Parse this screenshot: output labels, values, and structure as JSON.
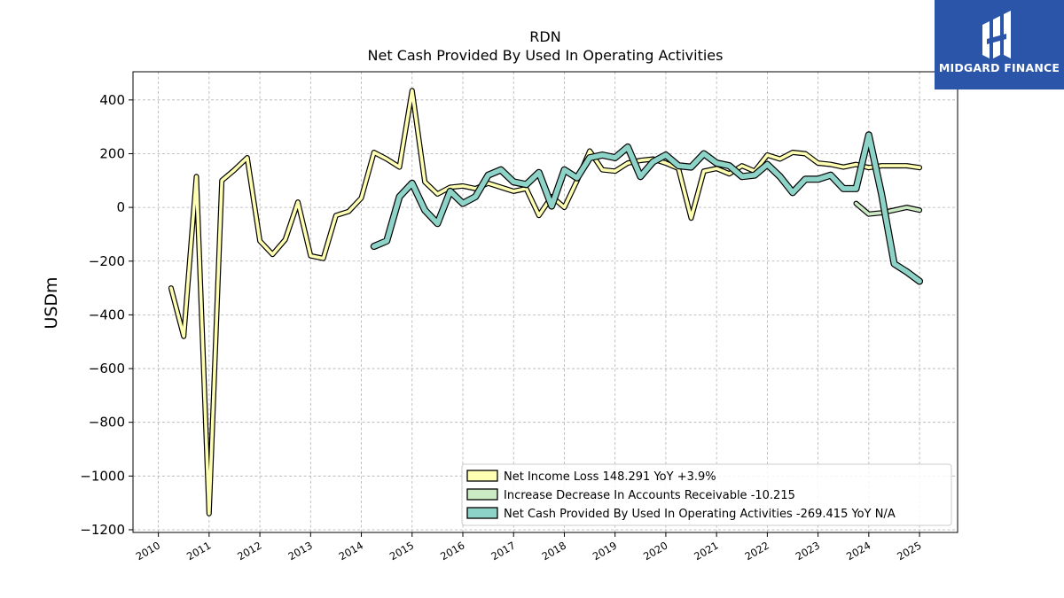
{
  "chart_data": {
    "type": "line",
    "title": "RDN",
    "subtitle": "Net Cash Provided By Used In Operating Activities",
    "ylabel": "USDm",
    "xlabel": "",
    "xlim": [
      2009.5,
      2025.75
    ],
    "ylim": [
      -1210,
      505
    ],
    "yticks": [
      -1200,
      -1000,
      -800,
      -600,
      -400,
      -200,
      0,
      200,
      400
    ],
    "ytick_labels": [
      "−1200",
      "−1000",
      "−800",
      "−600",
      "−400",
      "−200",
      "0",
      "200",
      "400"
    ],
    "xticks": [
      2010,
      2011,
      2012,
      2013,
      2014,
      2015,
      2016,
      2017,
      2018,
      2019,
      2020,
      2021,
      2022,
      2023,
      2024,
      2025
    ],
    "xtick_labels": [
      "2010",
      "2011",
      "2012",
      "2013",
      "2014",
      "2015",
      "2016",
      "2017",
      "2018",
      "2019",
      "2020",
      "2021",
      "2022",
      "2023",
      "2024",
      "2025"
    ],
    "grid": true,
    "legend_position": "lower-right",
    "series": [
      {
        "name": "Net Income Loss  148.291 YoY +3.9%",
        "color": "#ffffb3",
        "stroke_width": 3.6,
        "points": [
          [
            2010.25,
            -300
          ],
          [
            2010.5,
            -480
          ],
          [
            2010.75,
            115
          ],
          [
            2011.0,
            -1140
          ],
          [
            2011.25,
            100
          ],
          [
            2011.5,
            140
          ],
          [
            2011.75,
            185
          ],
          [
            2012.0,
            -125
          ],
          [
            2012.25,
            -175
          ],
          [
            2012.5,
            -120
          ],
          [
            2012.75,
            20
          ],
          [
            2013.0,
            -180
          ],
          [
            2013.25,
            -190
          ],
          [
            2013.5,
            -30
          ],
          [
            2013.75,
            -15
          ],
          [
            2014.0,
            35
          ],
          [
            2014.25,
            205
          ],
          [
            2014.5,
            180
          ],
          [
            2014.75,
            150
          ],
          [
            2015.0,
            435
          ],
          [
            2015.25,
            95
          ],
          [
            2015.5,
            50
          ],
          [
            2015.75,
            75
          ],
          [
            2016.0,
            80
          ],
          [
            2016.25,
            70
          ],
          [
            2016.5,
            90
          ],
          [
            2016.75,
            75
          ],
          [
            2017.0,
            60
          ],
          [
            2017.25,
            70
          ],
          [
            2017.5,
            -30
          ],
          [
            2017.75,
            40
          ],
          [
            2018.0,
            0
          ],
          [
            2018.25,
            100
          ],
          [
            2018.5,
            210
          ],
          [
            2018.75,
            140
          ],
          [
            2019.0,
            135
          ],
          [
            2019.25,
            165
          ],
          [
            2019.5,
            175
          ],
          [
            2019.75,
            180
          ],
          [
            2020.0,
            165
          ],
          [
            2020.25,
            145
          ],
          [
            2020.5,
            -40
          ],
          [
            2020.75,
            135
          ],
          [
            2021.0,
            145
          ],
          [
            2021.25,
            125
          ],
          [
            2021.5,
            155
          ],
          [
            2021.75,
            135
          ],
          [
            2022.0,
            195
          ],
          [
            2022.25,
            180
          ],
          [
            2022.5,
            205
          ],
          [
            2022.75,
            200
          ],
          [
            2023.0,
            165
          ],
          [
            2023.25,
            160
          ],
          [
            2023.5,
            150
          ],
          [
            2023.75,
            160
          ],
          [
            2024.0,
            148
          ],
          [
            2024.25,
            155
          ],
          [
            2024.5,
            155
          ],
          [
            2024.75,
            155
          ],
          [
            2025.0,
            148
          ]
        ]
      },
      {
        "name": "Increase Decrease In Accounts Receivable  -10.215",
        "color": "#ccebc5",
        "stroke_width": 3.6,
        "points": [
          [
            2023.75,
            15
          ],
          [
            2024.0,
            -25
          ],
          [
            2024.25,
            -20
          ],
          [
            2024.5,
            -10
          ],
          [
            2024.75,
            0
          ],
          [
            2025.0,
            -10
          ]
        ]
      },
      {
        "name": "Net Cash Provided By Used In Operating Activities  -269.415 YoY N/A",
        "color": "#8dd3c7",
        "stroke_width": 5.6,
        "points": [
          [
            2014.25,
            -145
          ],
          [
            2014.5,
            -125
          ],
          [
            2014.75,
            40
          ],
          [
            2015.0,
            90
          ],
          [
            2015.25,
            -10
          ],
          [
            2015.5,
            -60
          ],
          [
            2015.75,
            60
          ],
          [
            2016.0,
            15
          ],
          [
            2016.25,
            40
          ],
          [
            2016.5,
            120
          ],
          [
            2016.75,
            140
          ],
          [
            2017.0,
            95
          ],
          [
            2017.25,
            85
          ],
          [
            2017.5,
            130
          ],
          [
            2017.75,
            5
          ],
          [
            2018.0,
            140
          ],
          [
            2018.25,
            110
          ],
          [
            2018.5,
            185
          ],
          [
            2018.75,
            195
          ],
          [
            2019.0,
            185
          ],
          [
            2019.25,
            225
          ],
          [
            2019.5,
            115
          ],
          [
            2019.75,
            170
          ],
          [
            2020.0,
            195
          ],
          [
            2020.25,
            155
          ],
          [
            2020.5,
            150
          ],
          [
            2020.75,
            200
          ],
          [
            2021.0,
            165
          ],
          [
            2021.25,
            155
          ],
          [
            2021.5,
            115
          ],
          [
            2021.75,
            120
          ],
          [
            2022.0,
            160
          ],
          [
            2022.25,
            115
          ],
          [
            2022.5,
            55
          ],
          [
            2022.75,
            105
          ],
          [
            2023.0,
            105
          ],
          [
            2023.25,
            120
          ],
          [
            2023.5,
            70
          ],
          [
            2023.75,
            70
          ],
          [
            2024.0,
            270
          ],
          [
            2024.25,
            50
          ],
          [
            2024.5,
            -210
          ],
          [
            2024.75,
            -240
          ],
          [
            2025.0,
            -275
          ]
        ]
      }
    ]
  },
  "logo": {
    "text": "MIDGARD FINANCE",
    "background": "#2b55a8",
    "icon": "midgard-logo-icon"
  }
}
